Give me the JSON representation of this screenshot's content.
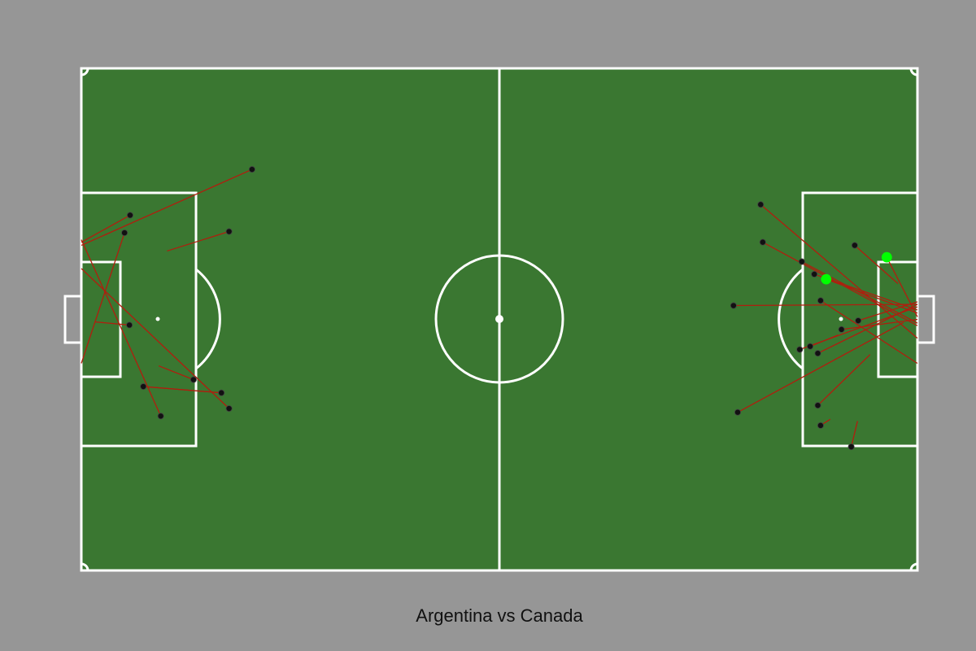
{
  "title": "Argentina vs Canada",
  "colors": {
    "background": "#969696",
    "pitch": "#3a7731",
    "lines": "#ffffff",
    "shot_line": "#b01e0e",
    "shot_marker": "#111111",
    "goal_marker": "#00ff00"
  },
  "chart_data": {
    "type": "scatter",
    "title": "Argentina vs Canada",
    "pitch": {
      "length": 120,
      "width": 80
    },
    "xlim": [
      0,
      120
    ],
    "ylim": [
      0,
      80
    ],
    "grid": false,
    "shots": [
      {
        "x": 24.5,
        "y": 63.9,
        "end_x": 0.0,
        "end_y": 51.8,
        "goal": false
      },
      {
        "x": 21.2,
        "y": 54.0,
        "end_x": 12.3,
        "end_y": 50.9,
        "goal": false
      },
      {
        "x": 7.0,
        "y": 56.6,
        "end_x": 0.0,
        "end_y": 52.3,
        "goal": false
      },
      {
        "x": 6.2,
        "y": 53.8,
        "end_x": 0.0,
        "end_y": 33.0,
        "goal": false
      },
      {
        "x": 6.9,
        "y": 39.1,
        "end_x": 2.0,
        "end_y": 39.6,
        "goal": false
      },
      {
        "x": 11.4,
        "y": 24.6,
        "end_x": 0.0,
        "end_y": 52.7,
        "goal": false
      },
      {
        "x": 8.9,
        "y": 29.3,
        "end_x": 20.1,
        "end_y": 28.3,
        "goal": false
      },
      {
        "x": 20.1,
        "y": 28.3,
        "end_x": 8.9,
        "end_y": 29.3,
        "goal": false
      },
      {
        "x": 16.1,
        "y": 30.4,
        "end_x": 11.1,
        "end_y": 32.6,
        "goal": false
      },
      {
        "x": 21.2,
        "y": 25.8,
        "end_x": 0.0,
        "end_y": 48.1,
        "goal": false
      },
      {
        "x": 97.5,
        "y": 58.3,
        "end_x": 120.0,
        "end_y": 37.0,
        "goal": false
      },
      {
        "x": 97.8,
        "y": 52.3,
        "end_x": 120.0,
        "end_y": 39.0,
        "goal": false
      },
      {
        "x": 93.6,
        "y": 42.2,
        "end_x": 120.0,
        "end_y": 42.4,
        "goal": false
      },
      {
        "x": 94.2,
        "y": 25.2,
        "end_x": 118.0,
        "end_y": 39.5,
        "goal": false
      },
      {
        "x": 103.4,
        "y": 49.2,
        "end_x": 120.0,
        "end_y": 39.4,
        "goal": false
      },
      {
        "x": 105.2,
        "y": 47.2,
        "end_x": 120.0,
        "end_y": 41.5,
        "goal": false
      },
      {
        "x": 106.1,
        "y": 43.0,
        "end_x": 120.0,
        "end_y": 33.0,
        "goal": false
      },
      {
        "x": 103.1,
        "y": 35.2,
        "end_x": 120.0,
        "end_y": 42.0,
        "goal": false
      },
      {
        "x": 104.6,
        "y": 35.7,
        "end_x": 108.6,
        "end_y": 37.5,
        "goal": false
      },
      {
        "x": 105.7,
        "y": 34.6,
        "end_x": 120.0,
        "end_y": 42.4,
        "goal": false
      },
      {
        "x": 109.1,
        "y": 38.4,
        "end_x": 120.0,
        "end_y": 40.0,
        "goal": false
      },
      {
        "x": 111.5,
        "y": 39.8,
        "end_x": 120.0,
        "end_y": 42.8,
        "goal": false
      },
      {
        "x": 111.0,
        "y": 51.8,
        "end_x": 117.2,
        "end_y": 45.7,
        "goal": false
      },
      {
        "x": 105.7,
        "y": 26.3,
        "end_x": 113.2,
        "end_y": 34.4,
        "goal": false
      },
      {
        "x": 106.1,
        "y": 23.1,
        "end_x": 107.5,
        "end_y": 24.1,
        "goal": false
      },
      {
        "x": 110.5,
        "y": 19.7,
        "end_x": 111.4,
        "end_y": 23.8,
        "goal": false
      },
      {
        "x": 106.9,
        "y": 46.4,
        "end_x": 120.0,
        "end_y": 41.0,
        "goal": true
      },
      {
        "x": 115.6,
        "y": 49.9,
        "end_x": 120.0,
        "end_y": 40.4,
        "goal": true
      }
    ]
  }
}
